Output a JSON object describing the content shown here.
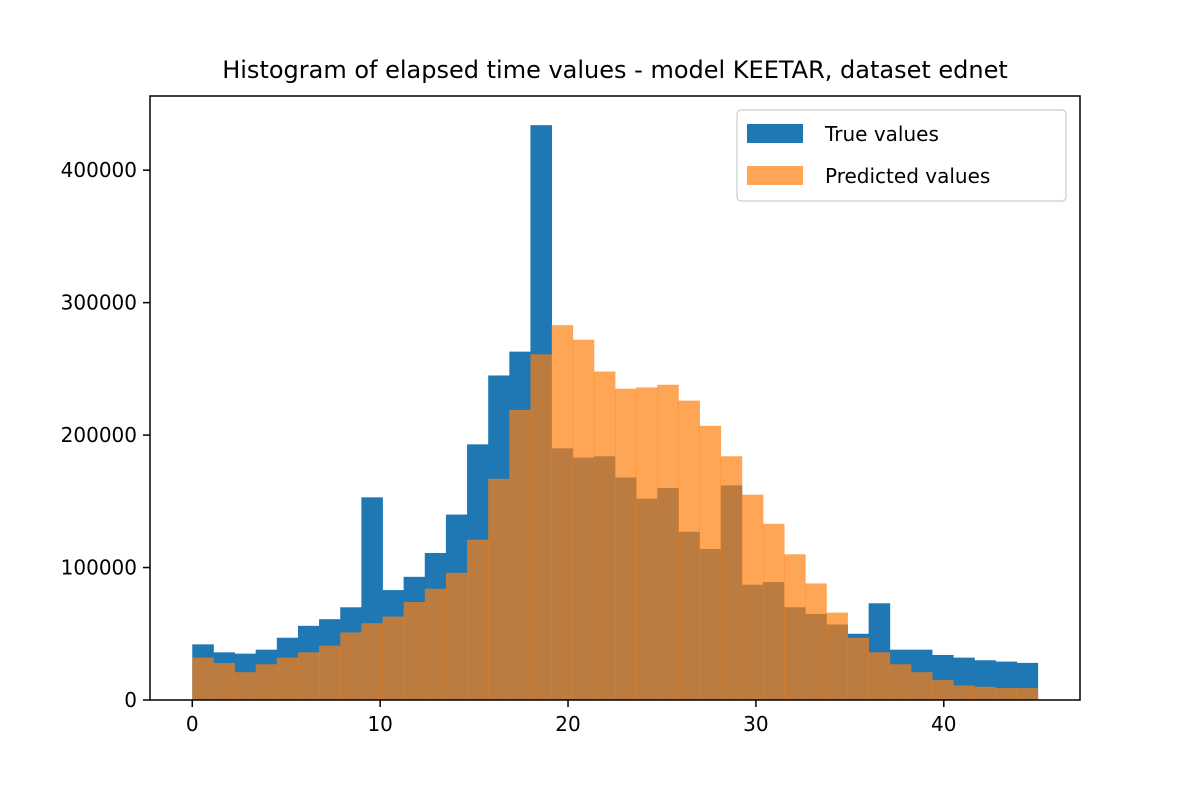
{
  "chart_data": {
    "type": "bar",
    "title": "Histogram of elapsed time values - model KEETAR, dataset ednet",
    "xlabel": "",
    "ylabel": "",
    "xlim": [
      -2.25,
      47.25
    ],
    "ylim": [
      0,
      456000
    ],
    "x_ticks": [
      0,
      10,
      20,
      30,
      40
    ],
    "y_ticks": [
      0,
      100000,
      200000,
      300000,
      400000
    ],
    "bins": {
      "start": 0,
      "width": 1.125,
      "count": 40
    },
    "grid": false,
    "legend_position": "upper right",
    "series": [
      {
        "name": "True values",
        "color": "#1f77b4",
        "opacity": 1.0,
        "values": [
          42000,
          36000,
          35000,
          38000,
          47000,
          56000,
          61000,
          70000,
          153000,
          83000,
          93000,
          111000,
          140000,
          193000,
          245000,
          263000,
          434000,
          190000,
          183000,
          184000,
          168000,
          152000,
          160000,
          127000,
          114000,
          162000,
          87000,
          89000,
          70000,
          65000,
          57000,
          50000,
          73000,
          38000,
          38000,
          34000,
          32000,
          30000,
          29000,
          28000
        ]
      },
      {
        "name": "Predicted values",
        "color": "#ff7f0e",
        "opacity": 0.7,
        "values": [
          32000,
          28000,
          21000,
          27000,
          32000,
          36000,
          41000,
          51000,
          58000,
          63000,
          74000,
          84000,
          96000,
          121000,
          167000,
          219000,
          261000,
          283000,
          272000,
          248000,
          235000,
          236000,
          238000,
          226000,
          207000,
          184000,
          155000,
          133000,
          110000,
          88000,
          66000,
          47000,
          36000,
          27000,
          21000,
          15000,
          11000,
          10000,
          9000,
          9000
        ]
      }
    ]
  }
}
